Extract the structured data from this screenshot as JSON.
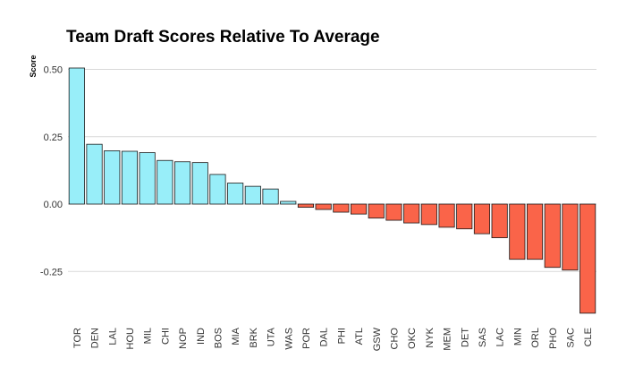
{
  "chart_data": {
    "type": "bar",
    "title": "Team Draft Scores Relative To Average",
    "xlabel": "",
    "ylabel": "Score",
    "ylim": [
      -0.42,
      0.52
    ],
    "yticks": [
      0.5,
      0.25,
      0.0,
      -0.25
    ],
    "ytick_labels": [
      "0.50",
      "0.25",
      "0.00",
      "-0.25"
    ],
    "grid": "horizontal",
    "legend": "none",
    "colors": {
      "positive": "#98EEF9",
      "negative": "#FA6449"
    },
    "categories": [
      "TOR",
      "DEN",
      "LAL",
      "HOU",
      "MIL",
      "CHI",
      "NOP",
      "IND",
      "BOS",
      "MIA",
      "BRK",
      "UTA",
      "WAS",
      "POR",
      "DAL",
      "PHI",
      "ATL",
      "GSW",
      "CHO",
      "OKC",
      "NYK",
      "MEM",
      "DET",
      "SAS",
      "LAC",
      "MIN",
      "ORL",
      "PHO",
      "SAC",
      "CLE"
    ],
    "values": [
      0.505,
      0.222,
      0.198,
      0.196,
      0.191,
      0.162,
      0.157,
      0.154,
      0.11,
      0.078,
      0.066,
      0.056,
      0.01,
      -0.012,
      -0.02,
      -0.03,
      -0.037,
      -0.052,
      -0.06,
      -0.07,
      -0.076,
      -0.086,
      -0.092,
      -0.11,
      -0.125,
      -0.205,
      -0.205,
      -0.235,
      -0.245,
      -0.405
    ]
  }
}
